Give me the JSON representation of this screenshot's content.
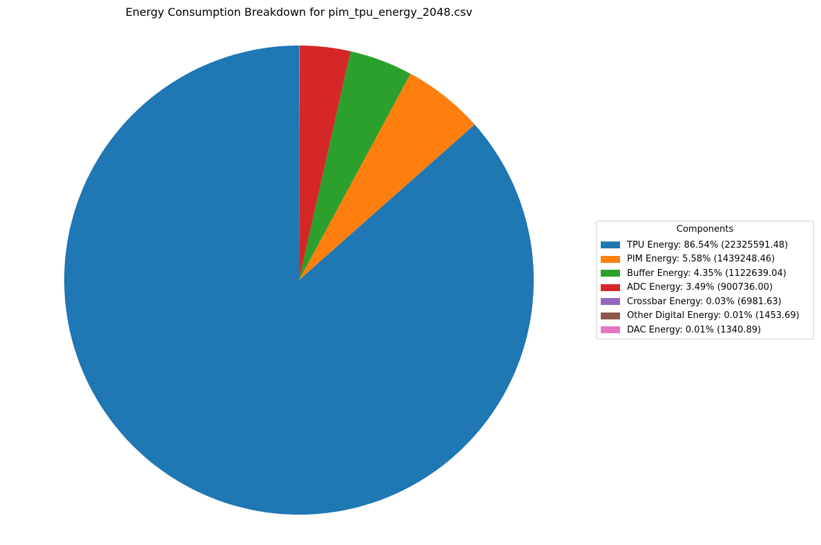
{
  "chart_data": {
    "type": "pie",
    "title": "Energy Consumption Breakdown for pim_tpu_energy_2048.csv",
    "legend_title": "Components",
    "legend_position": "right",
    "start_angle_deg": 90,
    "direction": "counterclockwise",
    "slices": [
      {
        "label": "TPU Energy: 86.54% (22325591.48)",
        "name": "TPU Energy",
        "percent": 86.54,
        "value": 22325591.48,
        "color": "#1f77b4"
      },
      {
        "label": "PIM Energy: 5.58% (1439248.46)",
        "name": "PIM Energy",
        "percent": 5.58,
        "value": 1439248.46,
        "color": "#ff7f0e"
      },
      {
        "label": "Buffer Energy: 4.35% (1122639.04)",
        "name": "Buffer Energy",
        "percent": 4.35,
        "value": 1122639.04,
        "color": "#2ca02c"
      },
      {
        "label": "ADC Energy: 3.49% (900736.00)",
        "name": "ADC Energy",
        "percent": 3.49,
        "value": 900736.0,
        "color": "#d62728"
      },
      {
        "label": "Crossbar Energy: 0.03% (6981.63)",
        "name": "Crossbar Energy",
        "percent": 0.03,
        "value": 6981.63,
        "color": "#9467bd"
      },
      {
        "label": "Other Digital Energy: 0.01% (1453.69)",
        "name": "Other Digital Energy",
        "percent": 0.01,
        "value": 1453.69,
        "color": "#8c564b"
      },
      {
        "label": "DAC Energy: 0.01% (1340.89)",
        "name": "DAC Energy",
        "percent": 0.01,
        "value": 1340.89,
        "color": "#e377c2"
      }
    ]
  }
}
